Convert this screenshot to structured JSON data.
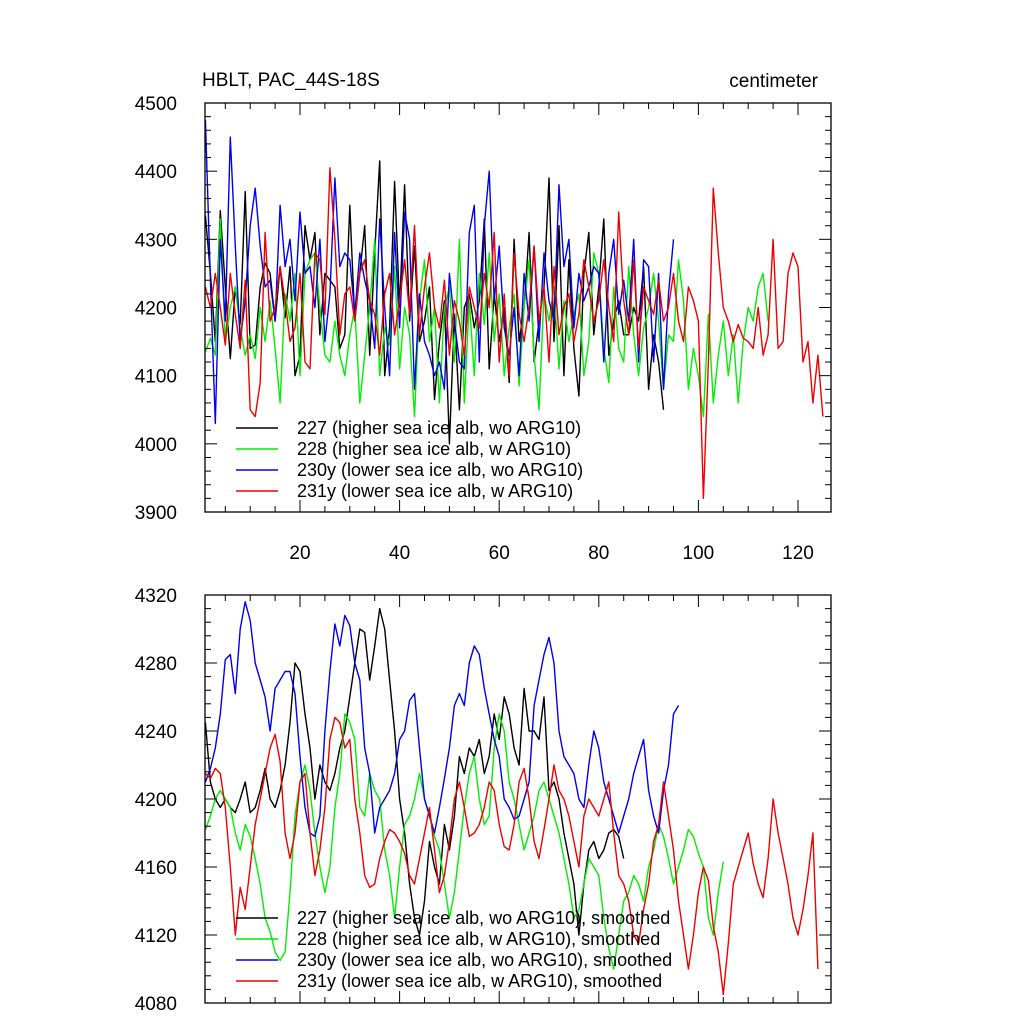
{
  "colors": {
    "s227": "#000000",
    "s228": "#00ee00",
    "s230y": "#0000ee",
    "s231y": "#ee0000"
  },
  "chart_data": [
    {
      "type": "line",
      "title": "HBLT, PAC_44S-18S",
      "units": "centimeter",
      "xlim": [
        1,
        124
      ],
      "ylim": [
        3900,
        4500
      ],
      "xticks": [
        20,
        40,
        60,
        80,
        100,
        120
      ],
      "yticks": [
        3900,
        4000,
        4100,
        4200,
        4300,
        4400,
        4500
      ],
      "legend_position": "bottom-left",
      "series": [
        {
          "name": "227 (higher sea ice alb, wo ARG10)",
          "key": "s227",
          "values": [
            4335,
            4250,
            4150,
            4342,
            4230,
            4125,
            4230,
            4175,
            4370,
            4140,
            4145,
            4230,
            4265,
            4250,
            4180,
            4260,
            4185,
            4260,
            4100,
            4130,
            4320,
            4270,
            4310,
            4160,
            4250,
            4240,
            4230,
            4140,
            4160,
            4350,
            4180,
            4250,
            4320,
            4130,
            4280,
            4415,
            4100,
            4170,
            4385,
            4200,
            4380,
            4180,
            4290,
            4150,
            4180,
            4230,
            4065,
            4150,
            4210,
            4000,
            4190,
            4050,
            4200,
            4220,
            4170,
            4210,
            4330,
            4110,
            4220,
            4150,
            4200,
            4090,
            4300,
            4150,
            4200,
            4310,
            4120,
            4180,
            4230,
            4390,
            4150,
            4320,
            4100,
            4270,
            4140,
            4070,
            4250,
            4310,
            4160,
            4230,
            4330,
            4130,
            4180,
            4210,
            4160,
            4160,
            4200,
            4180,
            4260,
            4080,
            4160,
            4120,
            4050
          ]
        },
        {
          "name": "228 (higher sea ice alb, w ARG10)",
          "key": "s228",
          "values": [
            4135,
            4155,
            4130,
            4330,
            4150,
            4200,
            4230,
            4170,
            4130,
            4160,
            4125,
            4200,
            4150,
            4210,
            4140,
            4060,
            4220,
            4180,
            4250,
            4100,
            4250,
            4270,
            4280,
            4200,
            4130,
            4120,
            4180,
            4130,
            4100,
            4160,
            4200,
            4060,
            4130,
            4200,
            4300,
            4100,
            4170,
            4145,
            4260,
            4110,
            4200,
            4160,
            4040,
            4210,
            4270,
            4150,
            4200,
            4060,
            4200,
            4230,
            4120,
            4300,
            4060,
            4210,
            4100,
            4250,
            4175,
            4280,
            4150,
            4220,
            4100,
            4170,
            4220,
            4085,
            4200,
            4270,
            4130,
            4050,
            4220,
            4180,
            4230,
            4110,
            4210,
            4150,
            4190,
            4220,
            4100,
            4150,
            4280,
            4250,
            4140,
            4090,
            4230,
            4140,
            4120,
            4260,
            4160,
            4100,
            4170,
            4200,
            4250,
            4180,
            4080,
            4160,
            4150,
            4270,
            4210,
            4080,
            4140,
            4100,
            4040,
            4190,
            4060,
            4130,
            4180,
            4100,
            4160,
            4060,
            4150,
            4200,
            4180,
            4230,
            4250,
            4180
          ]
        },
        {
          "name": "230y (lower sea ice alb, wo ARG10)",
          "key": "s230y",
          "values": [
            4475,
            4240,
            4030,
            4300,
            4180,
            4450,
            4290,
            4150,
            4210,
            4320,
            4375,
            4290,
            4230,
            4240,
            4180,
            4350,
            4260,
            4300,
            4210,
            4340,
            4250,
            4260,
            4200,
            4300,
            4150,
            4220,
            4390,
            4260,
            4280,
            4270,
            4190,
            4280,
            4240,
            4210,
            4140,
            4330,
            4200,
            4100,
            4310,
            4170,
            4340,
            4300,
            4080,
            4220,
            4150,
            4130,
            4100,
            4120,
            4080,
            4250,
            4180,
            4120,
            4110,
            4310,
            4350,
            4120,
            4320,
            4400,
            4210,
            4290,
            4170,
            4130,
            4200,
            4100,
            4250,
            4180,
            4290,
            4150,
            4280,
            4210,
            4180,
            4380,
            4260,
            4300,
            4170,
            4250,
            4210,
            4230,
            4260,
            4250,
            4120,
            4250,
            4300,
            4190,
            4240,
            4180,
            4300,
            4120,
            4270,
            4260,
            4120,
            4250,
            4080,
            4220,
            4300
          ]
        },
        {
          "name": "231y (lower sea ice alb, w ARG10)",
          "key": "s231y",
          "values": [
            4230,
            4200,
            4250,
            4200,
            4145,
            4250,
            4190,
            4140,
            4240,
            4050,
            4040,
            4090,
            4310,
            4180,
            4200,
            4260,
            4210,
            4150,
            4170,
            4250,
            4120,
            4110,
            4280,
            4270,
            4190,
            4405,
            4300,
            4160,
            4220,
            4230,
            4180,
            4250,
            4270,
            4210,
            4190,
            4130,
            4220,
            4250,
            4160,
            4210,
            4270,
            4190,
            4320,
            4160,
            4230,
            4280,
            4200,
            4170,
            4240,
            4130,
            4210,
            4180,
            4130,
            4230,
            4200,
            4170,
            4250,
            4200,
            4310,
            4120,
            4220,
            4100,
            4280,
            4190,
            4150,
            4200,
            4290,
            4180,
            4230,
            4120,
            4260,
            4160,
            4200,
            4220,
            4150,
            4190,
            4270,
            4230,
            4180,
            4210,
            4270,
            4200,
            4150,
            4340,
            4210,
            4160,
            4270,
            4140,
            4230,
            4210,
            4190,
            4240,
            4180,
            4200,
            4250,
            4180,
            4150,
            4230,
            4210,
            4180,
            3920,
            4120,
            4375,
            4280,
            4200,
            4180,
            4150,
            4175,
            4155,
            4150,
            4140,
            4200,
            4130,
            4160,
            4300,
            4140,
            4150,
            4250,
            4280,
            4260,
            4120,
            4150,
            4060,
            4130,
            4040
          ]
        }
      ]
    },
    {
      "type": "line",
      "xlim": [
        1,
        124
      ],
      "ylim": [
        4080,
        4320
      ],
      "yticks": [
        4080,
        4120,
        4160,
        4200,
        4240,
        4280,
        4320
      ],
      "legend_position": "bottom-left",
      "series": [
        {
          "name": "227 (higher sea ice alb, wo ARG10), smoothed",
          "key": "s227",
          "values": [
            4245,
            4210,
            4200,
            4195,
            4200,
            4195,
            4192,
            4200,
            4210,
            4192,
            4195,
            4205,
            4218,
            4200,
            4195,
            4205,
            4220,
            4245,
            4280,
            4275,
            4250,
            4230,
            4200,
            4220,
            4210,
            4205,
            4215,
            4230,
            4240,
            4260,
            4280,
            4300,
            4298,
            4270,
            4290,
            4312,
            4300,
            4270,
            4240,
            4200,
            4180,
            4150,
            4130,
            4120,
            4140,
            4175,
            4160,
            4150,
            4185,
            4170,
            4190,
            4225,
            4215,
            4230,
            4225,
            4235,
            4215,
            4225,
            4250,
            4235,
            4260,
            4250,
            4230,
            4220,
            4265,
            4240,
            4240,
            4235,
            4260,
            4205,
            4210,
            4200,
            4180,
            4165,
            4150,
            4120,
            4150,
            4170,
            4175,
            4165,
            4170,
            4180,
            4182,
            4178,
            4165
          ]
        },
        {
          "name": "228 (higher sea ice alb, w ARG10), smoothed",
          "key": "s228",
          "values": [
            4182,
            4190,
            4200,
            4205,
            4200,
            4195,
            4180,
            4170,
            4185,
            4178,
            4165,
            4150,
            4130,
            4122,
            4110,
            4105,
            4110,
            4145,
            4190,
            4210,
            4220,
            4205,
            4180,
            4160,
            4145,
            4160,
            4195,
            4215,
            4250,
            4245,
            4235,
            4195,
            4190,
            4215,
            4205,
            4200,
            4170,
            4155,
            4130,
            4160,
            4185,
            4190,
            4200,
            4215,
            4200,
            4190,
            4178,
            4170,
            4150,
            4130,
            4145,
            4170,
            4195,
            4215,
            4225,
            4200,
            4185,
            4190,
            4230,
            4250,
            4240,
            4210,
            4200,
            4185,
            4170,
            4180,
            4190,
            4205,
            4210,
            4200,
            4190,
            4180,
            4165,
            4150,
            4130,
            4135,
            4150,
            4165,
            4160,
            4155,
            4130,
            4112,
            4100,
            4120,
            4140,
            4145,
            4155,
            4150,
            4140,
            4160,
            4170,
            4185,
            4178,
            4165,
            4150,
            4160,
            4170,
            4182,
            4178,
            4168,
            4160,
            4130,
            4120,
            4145,
            4163
          ]
        },
        {
          "name": "230y (lower sea ice alb, wo ARG10), smoothed",
          "key": "s230y",
          "values": [
            4210,
            4218,
            4230,
            4250,
            4282,
            4285,
            4262,
            4300,
            4316,
            4305,
            4280,
            4270,
            4260,
            4240,
            4265,
            4270,
            4275,
            4275,
            4262,
            4225,
            4195,
            4180,
            4178,
            4190,
            4240,
            4275,
            4303,
            4290,
            4308,
            4302,
            4280,
            4270,
            4230,
            4215,
            4180,
            4195,
            4200,
            4205,
            4215,
            4235,
            4240,
            4258,
            4262,
            4230,
            4200,
            4190,
            4180,
            4195,
            4212,
            4230,
            4255,
            4262,
            4255,
            4280,
            4290,
            4285,
            4265,
            4250,
            4235,
            4225,
            4200,
            4195,
            4188,
            4190,
            4200,
            4210,
            4255,
            4270,
            4285,
            4295,
            4280,
            4240,
            4225,
            4220,
            4215,
            4200,
            4195,
            4220,
            4240,
            4230,
            4210,
            4200,
            4190,
            4180,
            4190,
            4200,
            4215,
            4225,
            4235,
            4205,
            4190,
            4180,
            4205,
            4220,
            4250,
            4255
          ]
        },
        {
          "name": "231y (lower sea ice alb, w ARG10), smoothed",
          "key": "s231y",
          "values": [
            4215,
            4212,
            4218,
            4215,
            4195,
            4160,
            4120,
            4148,
            4135,
            4160,
            4185,
            4200,
            4215,
            4230,
            4238,
            4222,
            4180,
            4165,
            4180,
            4210,
            4215,
            4180,
            4155,
            4170,
            4195,
            4235,
            4248,
            4245,
            4230,
            4235,
            4200,
            4180,
            4155,
            4148,
            4150,
            4165,
            4175,
            4182,
            4180,
            4175,
            4168,
            4155,
            4150,
            4165,
            4180,
            4195,
            4170,
            4145,
            4155,
            4175,
            4200,
            4210,
            4195,
            4178,
            4180,
            4185,
            4195,
            4210,
            4205,
            4185,
            4172,
            4170,
            4185,
            4210,
            4218,
            4200,
            4175,
            4165,
            4182,
            4200,
            4220,
            4205,
            4200,
            4190,
            4175,
            4160,
            4190,
            4200,
            4195,
            4190,
            4200,
            4210,
            4180,
            4155,
            4150,
            4140,
            4120,
            4115,
            4135,
            4150,
            4175,
            4185,
            4210,
            4190,
            4170,
            4140,
            4120,
            4100,
            4120,
            4145,
            4160,
            4152,
            4125,
            4110,
            4085,
            4115,
            4150,
            4160,
            4170,
            4180,
            4162,
            4150,
            4142,
            4165,
            4200,
            4180,
            4165,
            4150,
            4130,
            4120,
            4135,
            4155,
            4180,
            4100
          ]
        }
      ]
    }
  ]
}
